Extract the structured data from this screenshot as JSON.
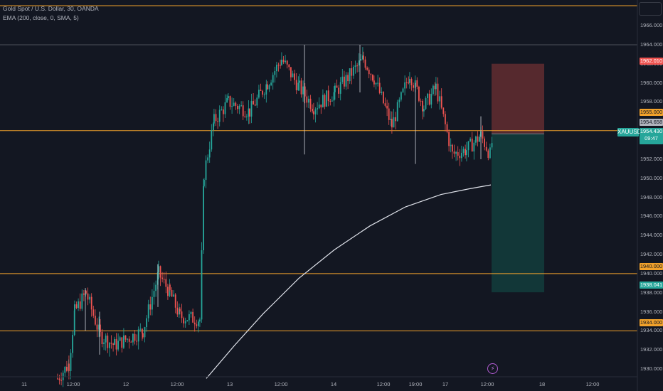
{
  "legend": {
    "title": "Gold Spot / U.S. Dollar, 30, OANDA",
    "indicator": "EMA (200, close, 0, SMA, 5)"
  },
  "symbol_tag": "XAUUSD",
  "countdown": "09:47",
  "colors": {
    "background": "#131722",
    "up": "#26a69a",
    "down": "#ef5350",
    "hline": "#f2a22b",
    "ema": "#e0e3eb",
    "stop_zone": "#5e2b30",
    "target_zone": "#133b3b"
  },
  "chart_data": {
    "type": "candlestick",
    "symbol": "XAUUSD",
    "timeframe": "30",
    "ylim": [
      1928.6,
      1968.0
    ],
    "y_ticks": [
      "1966.000",
      "1964.000",
      "1962.000",
      "1960.000",
      "1958.000",
      "1956.000",
      "1954.000",
      "1952.000",
      "1950.000",
      "1948.000",
      "1946.000",
      "1944.000",
      "1942.000",
      "1940.000",
      "1938.000",
      "1936.000",
      "1934.000",
      "1932.000",
      "1930.000"
    ],
    "x_ticks": [
      "11",
      "12:00",
      "12",
      "12:00",
      "13",
      "12:00",
      "14",
      "12:00",
      "19:00",
      "17",
      "12:00",
      "18",
      "12:00"
    ],
    "horizontal_levels": [
      1968.0,
      1955.0,
      1940.0,
      1934.0
    ],
    "gray_level": 1964.0,
    "position": {
      "entry": 1954.658,
      "stop": 1962.01,
      "target": 1938.041
    },
    "price_labels": {
      "stop": "1962.010",
      "level_1955": "1955.000",
      "entry": "1954.658",
      "current": "1954.430",
      "level_1940": "1940.000",
      "target": "1938.041",
      "level_1934": "1934.000"
    },
    "ema200": [
      [
        290,
        1929.0
      ],
      [
        330,
        1932.5
      ],
      [
        370,
        1935.8
      ],
      [
        420,
        1939.5
      ],
      [
        470,
        1942.5
      ],
      [
        520,
        1945.0
      ],
      [
        570,
        1947.0
      ],
      [
        620,
        1948.3
      ],
      [
        660,
        1948.9
      ],
      [
        690,
        1949.3
      ]
    ],
    "segments": [
      {
        "from_x": 80,
        "to_x": 96,
        "from_y": 1929.0,
        "to_y": 1930.5
      },
      {
        "from_x": 96,
        "to_x": 104,
        "from_y": 1930.5,
        "to_y": 1936.0
      },
      {
        "from_x": 104,
        "to_x": 120,
        "from_y": 1936.0,
        "to_y": 1938.0
      },
      {
        "from_x": 120,
        "to_x": 140,
        "from_y": 1938.0,
        "to_y": 1933.5
      },
      {
        "from_x": 140,
        "to_x": 160,
        "from_y": 1933.5,
        "to_y": 1932.5
      },
      {
        "from_x": 160,
        "to_x": 200,
        "from_y": 1932.5,
        "to_y": 1934.0
      },
      {
        "from_x": 200,
        "to_x": 222,
        "from_y": 1934.0,
        "to_y": 1940.0
      },
      {
        "from_x": 222,
        "to_x": 238,
        "from_y": 1940.0,
        "to_y": 1938.0
      },
      {
        "from_x": 238,
        "to_x": 252,
        "from_y": 1938.0,
        "to_y": 1935.5
      },
      {
        "from_x": 252,
        "to_x": 280,
        "from_y": 1935.5,
        "to_y": 1935.2
      },
      {
        "from_x": 280,
        "to_x": 286,
        "from_y": 1935.2,
        "to_y": 1950.5
      },
      {
        "from_x": 286,
        "to_x": 300,
        "from_y": 1950.5,
        "to_y": 1956.0
      },
      {
        "from_x": 300,
        "to_x": 320,
        "from_y": 1956.0,
        "to_y": 1958.0
      },
      {
        "from_x": 320,
        "to_x": 350,
        "from_y": 1958.0,
        "to_y": 1957.0
      },
      {
        "from_x": 350,
        "to_x": 375,
        "from_y": 1957.0,
        "to_y": 1960.0
      },
      {
        "from_x": 375,
        "to_x": 395,
        "from_y": 1960.0,
        "to_y": 1962.5
      },
      {
        "from_x": 395,
        "to_x": 420,
        "from_y": 1962.5,
        "to_y": 1959.5
      },
      {
        "from_x": 420,
        "to_x": 440,
        "from_y": 1959.5,
        "to_y": 1957.5
      },
      {
        "from_x": 440,
        "to_x": 470,
        "from_y": 1957.5,
        "to_y": 1959.0
      },
      {
        "from_x": 470,
        "to_x": 510,
        "from_y": 1959.0,
        "to_y": 1962.5
      },
      {
        "from_x": 510,
        "to_x": 525,
        "from_y": 1962.5,
        "to_y": 1960.5
      },
      {
        "from_x": 525,
        "to_x": 550,
        "from_y": 1960.5,
        "to_y": 1955.5
      },
      {
        "from_x": 550,
        "to_x": 575,
        "from_y": 1955.5,
        "to_y": 1961.0
      },
      {
        "from_x": 575,
        "to_x": 595,
        "from_y": 1961.0,
        "to_y": 1957.5
      },
      {
        "from_x": 595,
        "to_x": 612,
        "from_y": 1957.5,
        "to_y": 1959.5
      },
      {
        "from_x": 612,
        "to_x": 635,
        "from_y": 1959.5,
        "to_y": 1952.5
      },
      {
        "from_x": 635,
        "to_x": 655,
        "from_y": 1952.5,
        "to_y": 1953.0
      },
      {
        "from_x": 655,
        "to_x": 675,
        "from_y": 1953.0,
        "to_y": 1954.5
      },
      {
        "from_x": 675,
        "to_x": 688,
        "from_y": 1954.5,
        "to_y": 1952.5
      },
      {
        "from_x": 688,
        "to_x": 692,
        "from_y": 1952.5,
        "to_y": 1954.4
      }
    ],
    "wick_spikes": [
      {
        "x": 428,
        "high": 1964.0,
        "low": 1952.5
      },
      {
        "x": 584,
        "high": 1960.0,
        "low": 1951.5
      },
      {
        "x": 506,
        "high": 1964.0,
        "low": 1959.0
      },
      {
        "x": 222,
        "high": 1941.0,
        "low": 1936.5
      },
      {
        "x": 120,
        "high": 1938.5,
        "low": 1934.0
      },
      {
        "x": 676,
        "high": 1956.5,
        "low": 1952.0
      },
      {
        "x": 140,
        "high": 1936.0,
        "low": 1931.5
      }
    ]
  }
}
